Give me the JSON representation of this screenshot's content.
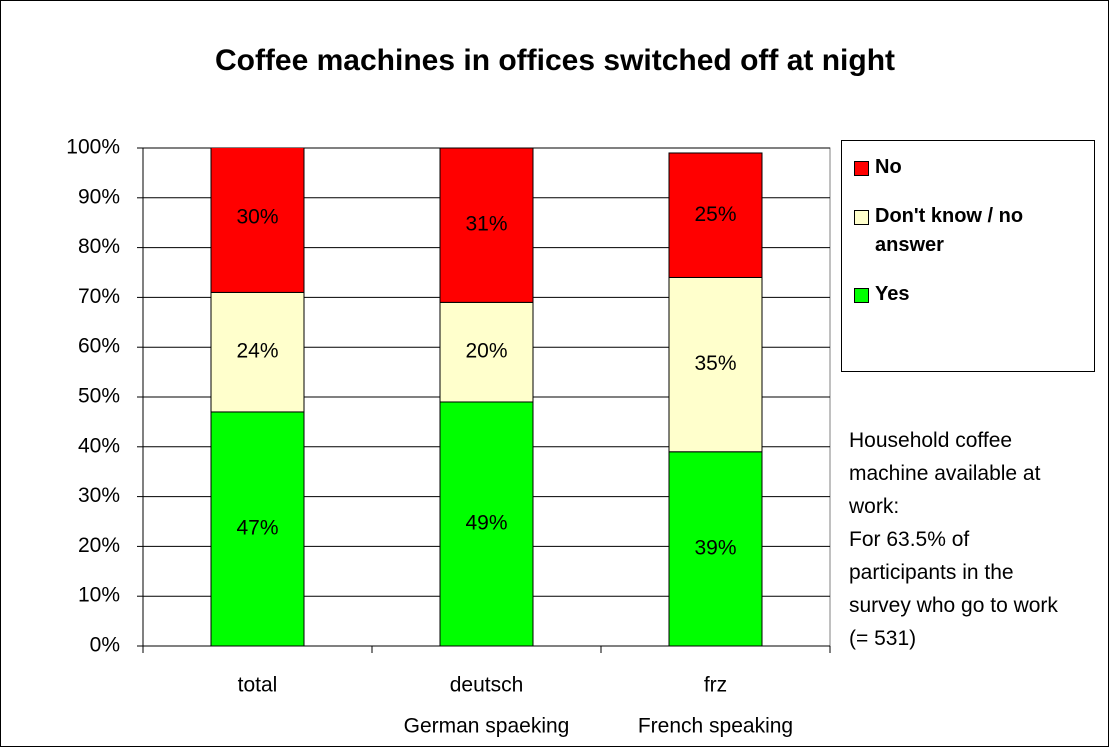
{
  "chart_data": {
    "type": "stacked_bar",
    "title": "Coffee machines in offices switched off at night",
    "categories": [
      "total",
      "deutsch",
      "frz"
    ],
    "category_sublabels": [
      null,
      "German spaeking",
      "French speaking"
    ],
    "series": [
      {
        "name": "Yes",
        "color": "#00ff00",
        "values": [
          47,
          49,
          39
        ],
        "value_labels": [
          "47%",
          "49%",
          "39%"
        ]
      },
      {
        "name": "Don't know / no answer",
        "color": "#ffffcc",
        "values": [
          24,
          20,
          35
        ],
        "value_labels": [
          "24%",
          "20%",
          "35%"
        ]
      },
      {
        "name": "No",
        "color": "#ff0000",
        "values": [
          30,
          31,
          25
        ],
        "value_labels": [
          "30%",
          "31%",
          "25%"
        ]
      }
    ],
    "ylim": [
      0,
      100
    ],
    "yticks": [
      {
        "value": 0,
        "label": "0%"
      },
      {
        "value": 10,
        "label": "10%"
      },
      {
        "value": 20,
        "label": "20%"
      },
      {
        "value": 30,
        "label": "30%"
      },
      {
        "value": 40,
        "label": "40%"
      },
      {
        "value": 50,
        "label": "50%"
      },
      {
        "value": 60,
        "label": "60%"
      },
      {
        "value": 70,
        "label": "70%"
      },
      {
        "value": 80,
        "label": "80%"
      },
      {
        "value": 90,
        "label": "90%"
      },
      {
        "value": 100,
        "label": "100%"
      }
    ],
    "grid": true,
    "legend": "right",
    "annotations": [
      "Household coffee machine available at work:",
      "For 63.5% of participants in the survey who go to work  (= 531)"
    ]
  }
}
